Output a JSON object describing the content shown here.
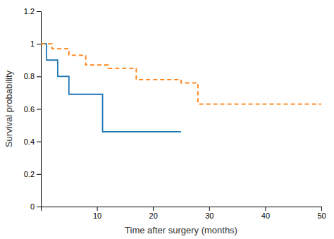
{
  "chart_data": {
    "type": "line",
    "xlabel": "Time after surgery (months)",
    "ylabel": "Survival probability",
    "series": [
      {
        "x": [
          0,
          1,
          1,
          3,
          3,
          5,
          5,
          11,
          11,
          25
        ],
        "values": [
          1.0,
          1.0,
          0.9,
          0.9,
          0.8,
          0.8,
          0.69,
          0.69,
          0.46,
          0.46
        ],
        "line_style": "solid"
      },
      {
        "x": [
          0,
          2,
          2,
          5,
          5,
          8,
          8,
          12,
          12,
          17,
          17,
          20,
          20,
          25,
          25,
          28,
          28,
          50
        ],
        "values": [
          1.0,
          1.0,
          0.97,
          0.97,
          0.93,
          0.93,
          0.87,
          0.87,
          0.85,
          0.85,
          0.78,
          0.78,
          0.78,
          0.78,
          0.76,
          0.76,
          0.63,
          0.63
        ],
        "line_style": "dashed"
      }
    ],
    "xlim": [
      0,
      50
    ],
    "ylim": [
      0,
      1.2
    ],
    "xticks": [
      10,
      20,
      30,
      40,
      50
    ],
    "yticks": [
      0,
      0.2,
      0.4,
      0.6,
      0.8,
      1.0,
      1.2
    ],
    "grid": false
  }
}
